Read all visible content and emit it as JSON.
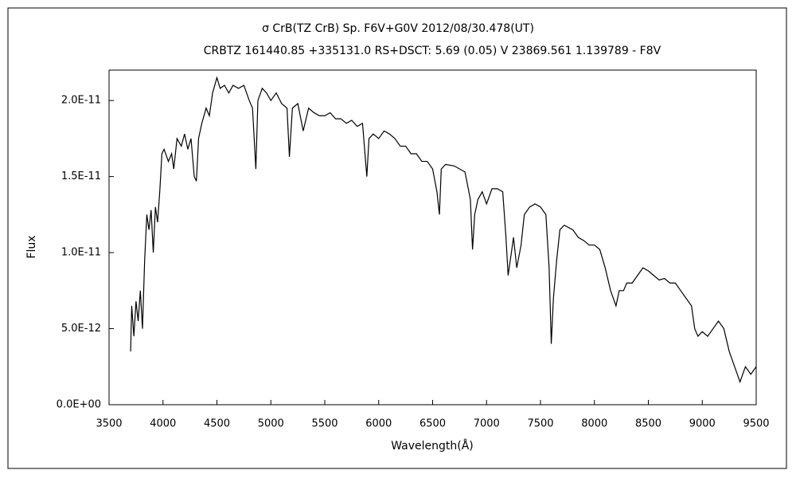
{
  "chart_data": {
    "type": "line",
    "title": "σ CrB(TZ CrB)    Sp. F6V+G0V    2012/08/30.478(UT)",
    "subtitle": "CRBTZ 161440.85 +335131.0 RS+DSCT: 5.69 (0.05) V 23869.561 1.139789 - F8V",
    "x_label": "Wavelength(Å)",
    "y_label": "Flux",
    "xlim": [
      3500,
      9500
    ],
    "xticks": [
      3500,
      4000,
      4500,
      5000,
      5500,
      6000,
      6500,
      7000,
      7500,
      8000,
      8500,
      9000,
      9500
    ],
    "ylim": [
      0,
      2.2e-11
    ],
    "yticks": [
      {
        "value": 0,
        "label": "0.0E+00"
      },
      {
        "value": 5e-12,
        "label": "5.0E-12"
      },
      {
        "value": 1e-11,
        "label": "1.0E-11"
      },
      {
        "value": 1.5e-11,
        "label": "1.5E-11"
      },
      {
        "value": 2e-11,
        "label": "2.0E-11"
      }
    ],
    "series": [
      {
        "color": "#000000",
        "x": [
          3700,
          3710,
          3730,
          3750,
          3770,
          3790,
          3810,
          3830,
          3850,
          3870,
          3890,
          3910,
          3930,
          3950,
          3970,
          3990,
          4010,
          4050,
          4080,
          4100,
          4130,
          4170,
          4200,
          4230,
          4260,
          4290,
          4310,
          4330,
          4360,
          4400,
          4430,
          4460,
          4500,
          4530,
          4570,
          4610,
          4650,
          4700,
          4750,
          4800,
          4830,
          4861,
          4880,
          4920,
          4960,
          5000,
          5050,
          5100,
          5150,
          5172,
          5200,
          5250,
          5300,
          5350,
          5400,
          5450,
          5500,
          5550,
          5600,
          5650,
          5700,
          5750,
          5800,
          5850,
          5890,
          5910,
          5950,
          6000,
          6050,
          6100,
          6150,
          6200,
          6250,
          6300,
          6350,
          6400,
          6450,
          6500,
          6540,
          6563,
          6580,
          6620,
          6700,
          6800,
          6850,
          6870,
          6890,
          6920,
          6960,
          7000,
          7050,
          7100,
          7150,
          7180,
          7200,
          7220,
          7250,
          7280,
          7320,
          7350,
          7400,
          7450,
          7500,
          7550,
          7580,
          7600,
          7620,
          7650,
          7680,
          7720,
          7800,
          7850,
          7900,
          7950,
          8000,
          8050,
          8100,
          8150,
          8200,
          8230,
          8270,
          8300,
          8350,
          8400,
          8450,
          8500,
          8550,
          8600,
          8650,
          8700,
          8750,
          8800,
          8850,
          8900,
          8930,
          8960,
          9000,
          9050,
          9100,
          9150,
          9200,
          9250,
          9300,
          9350,
          9400,
          9450,
          9500
        ],
        "values": [
          3.5e-12,
          6.5e-12,
          4.5e-12,
          6.8e-12,
          5.5e-12,
          7.5e-12,
          5e-12,
          9.5e-12,
          1.25e-11,
          1.15e-11,
          1.28e-11,
          1e-11,
          1.3e-11,
          1.2e-11,
          1.4e-11,
          1.65e-11,
          1.68e-11,
          1.6e-11,
          1.65e-11,
          1.55e-11,
          1.75e-11,
          1.7e-11,
          1.78e-11,
          1.68e-11,
          1.75e-11,
          1.5e-11,
          1.47e-11,
          1.75e-11,
          1.85e-11,
          1.95e-11,
          1.9e-11,
          2.05e-11,
          2.15e-11,
          2.08e-11,
          2.1e-11,
          2.05e-11,
          2.1e-11,
          2.08e-11,
          2.1e-11,
          2e-11,
          1.95e-11,
          1.55e-11,
          2e-11,
          2.08e-11,
          2.05e-11,
          2e-11,
          2.05e-11,
          1.98e-11,
          1.95e-11,
          1.63e-11,
          1.95e-11,
          1.98e-11,
          1.8e-11,
          1.95e-11,
          1.92e-11,
          1.9e-11,
          1.9e-11,
          1.92e-11,
          1.88e-11,
          1.88e-11,
          1.85e-11,
          1.87e-11,
          1.83e-11,
          1.85e-11,
          1.5e-11,
          1.75e-11,
          1.78e-11,
          1.75e-11,
          1.8e-11,
          1.78e-11,
          1.75e-11,
          1.7e-11,
          1.7e-11,
          1.65e-11,
          1.65e-11,
          1.6e-11,
          1.6e-11,
          1.55e-11,
          1.4e-11,
          1.25e-11,
          1.55e-11,
          1.58e-11,
          1.57e-11,
          1.53e-11,
          1.35e-11,
          1.02e-11,
          1.25e-11,
          1.35e-11,
          1.4e-11,
          1.32e-11,
          1.42e-11,
          1.42e-11,
          1.4e-11,
          1.1e-11,
          8.5e-12,
          9.5e-12,
          1.1e-11,
          9e-12,
          1.05e-11,
          1.25e-11,
          1.3e-11,
          1.32e-11,
          1.3e-11,
          1.25e-11,
          9e-12,
          4e-12,
          7e-12,
          9.5e-12,
          1.15e-11,
          1.18e-11,
          1.15e-11,
          1.1e-11,
          1.08e-11,
          1.05e-11,
          1.05e-11,
          1.02e-11,
          9e-12,
          7.5e-12,
          6.5e-12,
          7.5e-12,
          7.5e-12,
          8e-12,
          8e-12,
          8.5e-12,
          9e-12,
          8.8e-12,
          8.5e-12,
          8.2e-12,
          8.3e-12,
          8e-12,
          8e-12,
          7.5e-12,
          7e-12,
          6.5e-12,
          5e-12,
          4.5e-12,
          4.8e-12,
          4.5e-12,
          5e-12,
          5.5e-12,
          5e-12,
          3.5e-12,
          2.5e-12,
          1.5e-12,
          2.5e-12,
          2e-12,
          2.5e-12
        ]
      }
    ]
  }
}
